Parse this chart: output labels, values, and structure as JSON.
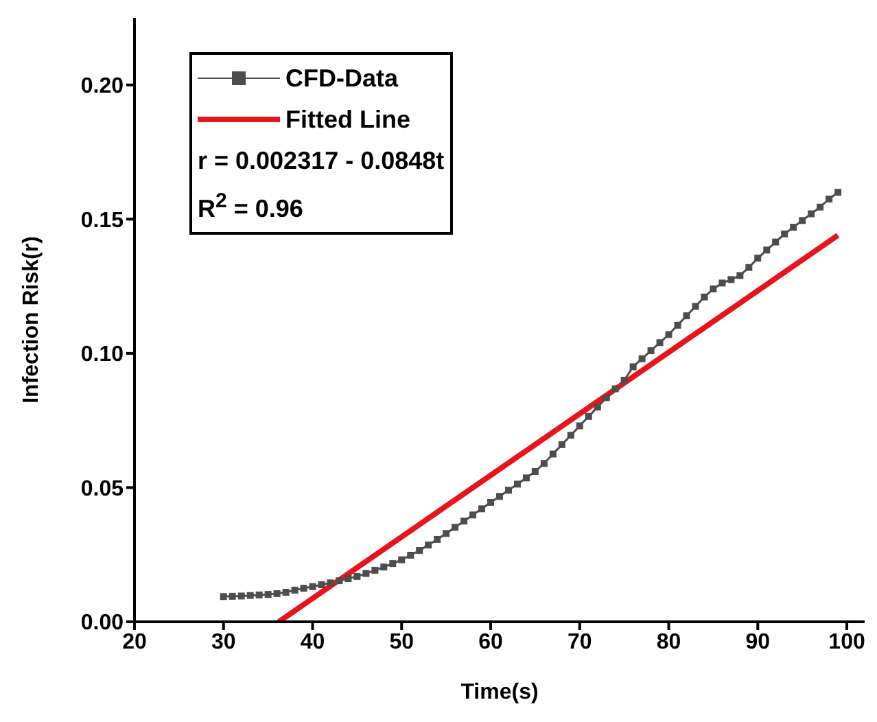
{
  "chart_data": {
    "type": "line",
    "xlabel": "Time(s)",
    "ylabel": "Infection Risk(r)",
    "xlim": [
      20,
      102
    ],
    "xticks": [
      20,
      30,
      40,
      50,
      60,
      70,
      80,
      90,
      100
    ],
    "ylim": [
      0,
      0.225
    ],
    "yticks": [
      {
        "value": 0,
        "label": "0.00"
      },
      {
        "value": 0.05,
        "label": "0.05"
      },
      {
        "value": 0.1,
        "label": "0.10"
      },
      {
        "value": 0.15,
        "label": "0.15"
      },
      {
        "value": 0.2,
        "label": "0.20"
      }
    ],
    "legend": "top left",
    "grid": false,
    "annotations": [
      "r = 0.002317 - 0.0848t",
      "R$^{2}$ = 0.96"
    ],
    "series": [
      {
        "name": "CFD-Data",
        "color": "#4d4d4d",
        "marker": "square",
        "x": [
          30,
          31,
          32,
          33,
          34,
          35,
          36,
          37,
          38,
          39,
          40,
          41,
          42,
          43,
          44,
          45,
          46,
          47,
          48,
          49,
          50,
          51,
          52,
          53,
          54,
          55,
          56,
          57,
          58,
          59,
          60,
          61,
          62,
          63,
          64,
          65,
          66,
          67,
          68,
          69,
          70,
          71,
          72,
          73,
          74,
          75,
          76,
          77,
          78,
          79,
          80,
          81,
          82,
          83,
          84,
          85,
          86,
          87,
          88,
          89,
          90,
          91,
          92,
          93,
          94,
          95,
          96,
          97,
          98,
          99
        ],
        "values": [
          0.0094,
          0.0095,
          0.0096,
          0.0098,
          0.01,
          0.0102,
          0.0105,
          0.011,
          0.0118,
          0.0125,
          0.0131,
          0.0138,
          0.0145,
          0.0153,
          0.0161,
          0.0169,
          0.018,
          0.0192,
          0.0204,
          0.0217,
          0.0231,
          0.0248,
          0.0266,
          0.0286,
          0.0307,
          0.0329,
          0.0352,
          0.0375,
          0.0398,
          0.0421,
          0.0445,
          0.0467,
          0.049,
          0.0513,
          0.0536,
          0.056,
          0.059,
          0.0625,
          0.066,
          0.0695,
          0.073,
          0.0765,
          0.08,
          0.0835,
          0.0868,
          0.09,
          0.095,
          0.098,
          0.101,
          0.104,
          0.107,
          0.1105,
          0.114,
          0.1175,
          0.121,
          0.124,
          0.1262,
          0.1275,
          0.129,
          0.132,
          0.1355,
          0.1385,
          0.1415,
          0.1445,
          0.147,
          0.1495,
          0.152,
          0.1545,
          0.1575,
          0.16
        ]
      },
      {
        "name": "Fitted Line",
        "color": "#e8141c",
        "marker": "none",
        "x": [
          36.2,
          99
        ],
        "values": [
          0,
          0.144
        ]
      }
    ]
  }
}
